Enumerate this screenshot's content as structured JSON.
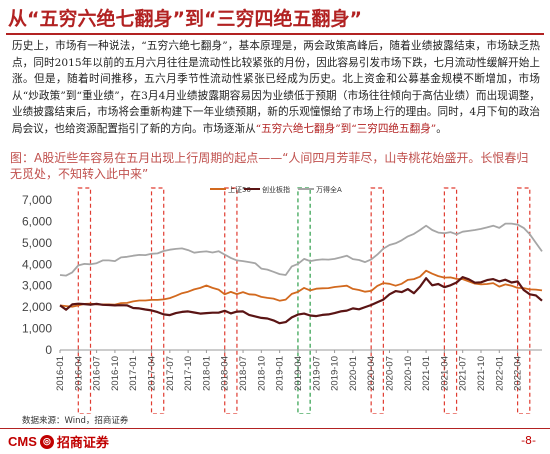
{
  "header": {
    "title": "从“五穷六绝七翻身”到“三穷四绝五翻身”"
  },
  "body": {
    "p1": "历史上，市场有一种说法，“五穷六绝七翻身”，基本原理是，两会政策高峰后，随着业绩披露结束，市场缺乏热点，同时2015年以前的五月六月往往是流动性比较紧张的月份，因此容易引发市场下跌，七月流动性缓解开始上涨。但是，随着时间推移，五六月季节性流动性紧张已经成为历史。北上资金和公募基金规模不断增加，市场从“炒政策”到“重业绩”，在3月4月业绩披露期容易因为业绩低于预期（市场往往倾向于高估业绩）而出现调整，业绩披露结束后，市场将会重新构建下一年业绩预期，新的乐观憧憬给了市场上行的理由。同时，4月下旬的政治局会议，也给资源配置指引了新的方向。市场逐渐",
    "p1_highlight": "“五穷六绝七翻身”到“三穷四绝五翻身”",
    "p1_mid": "从",
    "p1_end": "。"
  },
  "caption": {
    "text": "图：A股近些年容易在五月出现上行周期的起点——“人间四月芳菲尽，山寺桃花始盛开。长恨春归无觅处，不知转入此中来”"
  },
  "footer": {
    "source": "数据来源：Wind，招商证券",
    "logo_text": "CMS",
    "logo_cn": "招商证券",
    "page": "-8-"
  },
  "colors": {
    "brand_red": "#b22222",
    "sh50": "#d2691e",
    "cy": "#5a1414",
    "wind": "#a6a6a6",
    "box_red": "#e03c31",
    "box_green": "#2e9e4a"
  },
  "chart_data": {
    "type": "line",
    "ylim": [
      0,
      7000
    ],
    "yticks": [
      0,
      1000,
      2000,
      3000,
      4000,
      5000,
      6000,
      7000
    ],
    "xticks": [
      "2016-01",
      "2016-04",
      "2016-07",
      "2016-10",
      "2017-01",
      "2017-04",
      "2017-07",
      "2017-10",
      "2018-01",
      "2018-04",
      "2018-07",
      "2018-10",
      "2019-01",
      "2019-04",
      "2019-07",
      "2019-10",
      "2020-01",
      "2020-04",
      "2020-07",
      "2020-10",
      "2021-01",
      "2021-04",
      "2021-07",
      "2021-10",
      "2022-01",
      "2022-04"
    ],
    "legend": [
      "上证50",
      "创业板指",
      "万得全A"
    ],
    "legend_position": "top",
    "grid": false,
    "highlights": [
      {
        "start": 3,
        "end": 5,
        "color": "red"
      },
      {
        "start": 15,
        "end": 17,
        "color": "red"
      },
      {
        "start": 27,
        "end": 29,
        "color": "red"
      },
      {
        "start": 39,
        "end": 41,
        "color": "green"
      },
      {
        "start": 51,
        "end": 53,
        "color": "red"
      },
      {
        "start": 63,
        "end": 65,
        "color": "red"
      },
      {
        "start": 75,
        "end": 77,
        "color": "red"
      }
    ],
    "series": [
      {
        "name": "上证50",
        "color": "#d2691e",
        "values": [
          2080,
          2050,
          2020,
          2080,
          2150,
          2160,
          2130,
          2130,
          2130,
          2120,
          2190,
          2200,
          2270,
          2310,
          2310,
          2340,
          2340,
          2360,
          2420,
          2530,
          2650,
          2720,
          2830,
          2900,
          3010,
          2900,
          2820,
          2600,
          2710,
          2610,
          2700,
          2600,
          2580,
          2480,
          2430,
          2400,
          2300,
          2350,
          2620,
          2710,
          2900,
          2780,
          2860,
          2880,
          2890,
          2940,
          2970,
          3000,
          2850,
          2800,
          2720,
          2760,
          2990,
          3120,
          3090,
          3000,
          3090,
          3270,
          3310,
          3420,
          3700,
          3560,
          3450,
          3380,
          3390,
          3320,
          3310,
          3200,
          3100,
          3060,
          3080,
          3120,
          2960,
          3060,
          3000,
          2900,
          2890,
          2830,
          2820,
          2780
        ]
      },
      {
        "name": "创业板指",
        "color": "#5a1414",
        "values": [
          2080,
          1880,
          2130,
          2160,
          2140,
          2120,
          2150,
          2110,
          2100,
          2080,
          2090,
          2080,
          1960,
          1940,
          1890,
          1850,
          1770,
          1660,
          1630,
          1720,
          1780,
          1800,
          1750,
          1700,
          1720,
          1740,
          1740,
          1830,
          1710,
          1790,
          1800,
          1640,
          1570,
          1500,
          1470,
          1380,
          1250,
          1300,
          1520,
          1650,
          1700,
          1610,
          1580,
          1640,
          1660,
          1720,
          1800,
          1840,
          1940,
          1900,
          2000,
          2100,
          2230,
          2350,
          2600,
          2750,
          2700,
          2840,
          2650,
          2950,
          3350,
          3020,
          3080,
          2930,
          3020,
          3150,
          3400,
          3300,
          3140,
          3160,
          3260,
          3310,
          3200,
          3280,
          3150,
          3200,
          2800,
          2600,
          2550,
          2300
        ]
      },
      {
        "name": "万得全A",
        "color": "#a6a6a6",
        "values": [
          3500,
          3470,
          3620,
          3950,
          4020,
          4000,
          4050,
          4180,
          4180,
          4150,
          4320,
          4350,
          4400,
          4440,
          4430,
          4490,
          4510,
          4620,
          4680,
          4720,
          4740,
          4660,
          4540,
          4580,
          4600,
          4550,
          4610,
          4450,
          4300,
          4180,
          4150,
          4100,
          4050,
          3800,
          3750,
          3650,
          3540,
          3500,
          3900,
          4020,
          4250,
          4150,
          4200,
          4230,
          4220,
          4250,
          4320,
          4400,
          4240,
          4200,
          4100,
          4230,
          4450,
          4730,
          4900,
          4980,
          5120,
          5300,
          5420,
          5600,
          5800,
          5600,
          5480,
          5450,
          5500,
          5400,
          5520,
          5560,
          5600,
          5650,
          5720,
          5800,
          5700,
          5900,
          5900,
          5850,
          5700,
          5400,
          5000,
          4600
        ]
      }
    ]
  }
}
